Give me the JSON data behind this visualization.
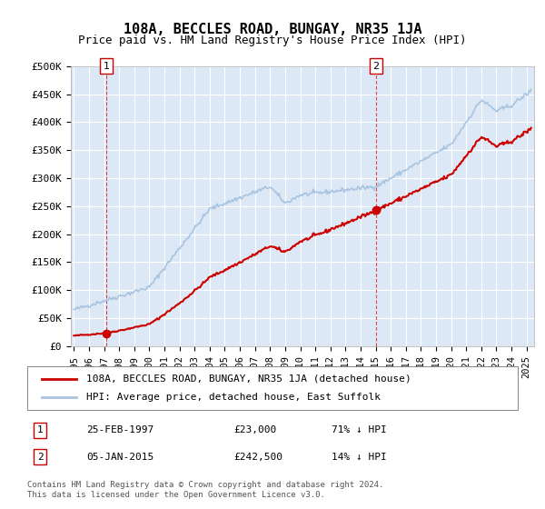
{
  "title": "108A, BECCLES ROAD, BUNGAY, NR35 1JA",
  "subtitle": "Price paid vs. HM Land Registry's House Price Index (HPI)",
  "ylabel_ticks": [
    "£0",
    "£50K",
    "£100K",
    "£150K",
    "£200K",
    "£250K",
    "£300K",
    "£350K",
    "£400K",
    "£450K",
    "£500K"
  ],
  "ylim": [
    0,
    500000
  ],
  "xlim_start": 1995.0,
  "xlim_end": 2025.5,
  "sale1_date": 1997.15,
  "sale1_price": 23000,
  "sale2_date": 2015.03,
  "sale2_price": 242500,
  "hpi_color": "#a8c4e0",
  "sale_line_color": "#cc0000",
  "sale_dot_color": "#cc0000",
  "vline_color": "#cc0000",
  "bg_color": "#e8f0f8",
  "legend_entry1": "108A, BECCLES ROAD, BUNGAY, NR35 1JA (detached house)",
  "legend_entry2": "HPI: Average price, detached house, East Suffolk",
  "annotation1_label": "1",
  "annotation2_label": "2",
  "table_row1": [
    "1",
    "25-FEB-1997",
    "£23,000",
    "71% ↓ HPI"
  ],
  "table_row2": [
    "2",
    "05-JAN-2015",
    "£242,500",
    "14% ↓ HPI"
  ],
  "footer": "Contains HM Land Registry data © Crown copyright and database right 2024.\nThis data is licensed under the Open Government Licence v3.0.",
  "grid_color": "#ffffff",
  "plot_bg": "#dce8f5"
}
